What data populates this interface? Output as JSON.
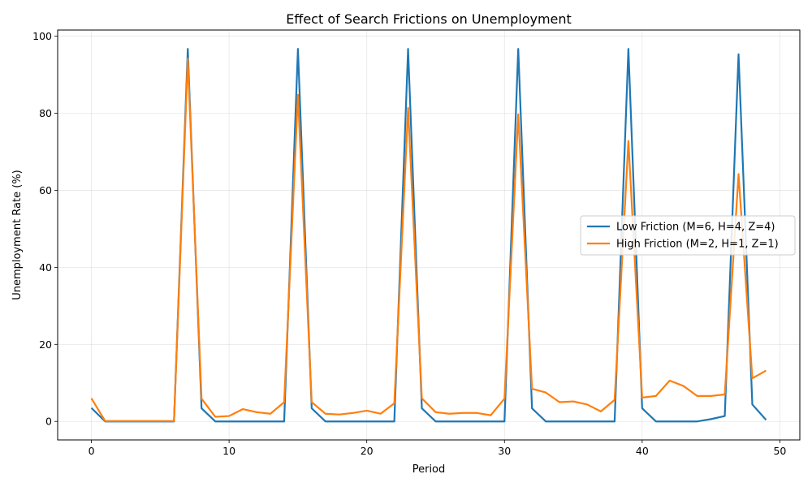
{
  "chart_data": {
    "type": "line",
    "title": "Effect of Search Frictions on Unemployment",
    "xlabel": "Period",
    "ylabel": "Unemployment Rate (%)",
    "xlim": [
      -2.45,
      51.45
    ],
    "ylim": [
      -4.8,
      101.6
    ],
    "xticks": [
      0,
      10,
      20,
      30,
      40,
      50
    ],
    "yticks": [
      0,
      20,
      40,
      60,
      80,
      100
    ],
    "grid": true,
    "legend_position": "center-right",
    "x": [
      0,
      1,
      2,
      3,
      4,
      5,
      6,
      7,
      8,
      9,
      10,
      11,
      12,
      13,
      14,
      15,
      16,
      17,
      18,
      19,
      20,
      21,
      22,
      23,
      24,
      25,
      26,
      27,
      28,
      29,
      30,
      31,
      32,
      33,
      34,
      35,
      36,
      37,
      38,
      39,
      40,
      41,
      42,
      43,
      44,
      45,
      46,
      47,
      48,
      49
    ],
    "series": [
      {
        "name": "Low Friction (M=6, H=4, Z=4)",
        "color": "#1f77b4",
        "values": [
          3.5,
          0,
          0,
          0,
          0,
          0,
          0,
          96.7,
          3.4,
          0,
          0,
          0,
          0,
          0,
          0,
          96.7,
          3.4,
          0,
          0,
          0,
          0,
          0,
          0,
          96.7,
          3.4,
          0,
          0,
          0,
          0,
          0,
          0,
          96.7,
          3.4,
          0,
          0,
          0,
          0,
          0,
          0,
          96.7,
          3.4,
          0,
          0,
          0,
          0,
          0.6,
          1.4,
          95.3,
          4.4,
          0.4
        ]
      },
      {
        "name": "High Friction (M=2, H=1, Z=1)",
        "color": "#ff7f0e",
        "values": [
          6.0,
          0.1,
          0.1,
          0.1,
          0.1,
          0.1,
          0.1,
          94.2,
          5.9,
          1.2,
          1.4,
          3.2,
          2.4,
          2.0,
          5.0,
          84.8,
          5.0,
          2.0,
          1.8,
          2.2,
          2.8,
          2.0,
          4.7,
          81.4,
          6.0,
          2.4,
          2.0,
          2.2,
          2.2,
          1.6,
          5.9,
          79.7,
          8.5,
          7.5,
          5.0,
          5.2,
          4.4,
          2.6,
          5.6,
          72.8,
          6.2,
          6.6,
          10.6,
          9.2,
          6.6,
          6.6,
          7.0,
          64.2,
          11.2,
          13.2
        ]
      }
    ]
  }
}
